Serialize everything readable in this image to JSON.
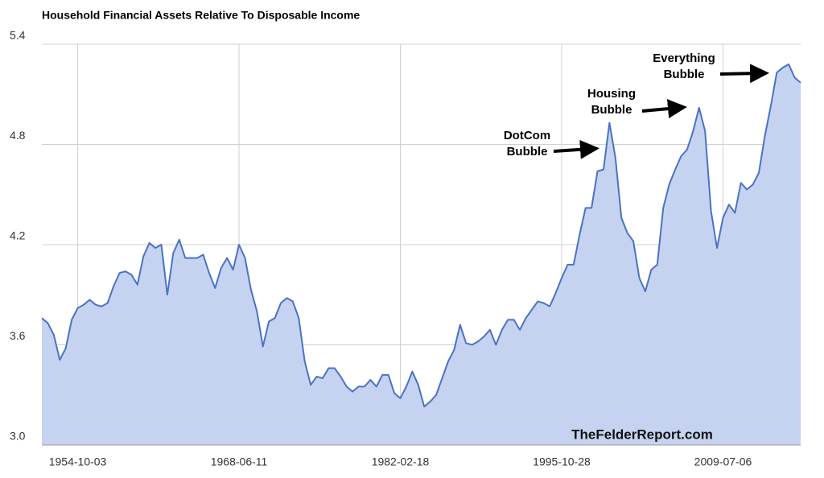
{
  "chart_data": {
    "type": "area",
    "title": "Household Financial Assets Relative To Disposable Income",
    "categories": [
      null,
      null,
      null,
      null,
      null,
      null,
      "1954-10-03",
      null,
      null,
      null,
      null,
      null,
      null,
      null,
      null,
      null,
      null,
      null,
      null,
      null,
      null,
      null,
      null,
      null,
      null,
      null,
      null,
      null,
      null,
      null,
      null,
      null,
      null,
      "1968-06-11",
      null,
      null,
      null,
      null,
      null,
      null,
      null,
      null,
      null,
      null,
      null,
      null,
      null,
      null,
      null,
      null,
      null,
      null,
      null,
      null,
      null,
      null,
      null,
      null,
      null,
      null,
      "1982-02-18",
      null,
      null,
      null,
      null,
      null,
      null,
      null,
      null,
      null,
      null,
      null,
      null,
      null,
      null,
      null,
      null,
      null,
      null,
      null,
      null,
      null,
      null,
      null,
      null,
      null,
      null,
      "1995-10-28",
      null,
      null,
      null,
      null,
      null,
      null,
      null,
      null,
      null,
      null,
      null,
      null,
      null,
      null,
      null,
      null,
      null,
      null,
      null,
      null,
      null,
      null,
      null,
      null,
      null,
      null,
      "2009-07-06",
      null,
      null,
      null,
      null,
      null,
      null,
      null,
      null,
      null,
      null,
      null,
      null,
      null
    ],
    "values": [
      3.76,
      3.73,
      3.66,
      3.51,
      3.58,
      3.75,
      3.82,
      3.84,
      3.87,
      3.84,
      3.83,
      3.85,
      3.95,
      4.03,
      4.04,
      4.02,
      3.96,
      4.13,
      4.21,
      4.18,
      4.2,
      3.9,
      4.15,
      4.23,
      4.12,
      4.12,
      4.12,
      4.14,
      4.03,
      3.94,
      4.06,
      4.12,
      4.05,
      4.2,
      4.12,
      3.93,
      3.8,
      3.59,
      3.74,
      3.76,
      3.85,
      3.88,
      3.86,
      3.76,
      3.5,
      3.36,
      3.41,
      3.4,
      3.46,
      3.46,
      3.41,
      3.35,
      3.32,
      3.35,
      3.35,
      3.39,
      3.35,
      3.42,
      3.42,
      3.31,
      3.28,
      3.35,
      3.44,
      3.36,
      3.23,
      3.26,
      3.3,
      3.4,
      3.5,
      3.57,
      3.72,
      3.61,
      3.6,
      3.62,
      3.65,
      3.69,
      3.6,
      3.69,
      3.75,
      3.75,
      3.69,
      3.76,
      3.81,
      3.86,
      3.85,
      3.83,
      3.91,
      4.0,
      4.08,
      4.08,
      4.26,
      4.42,
      4.42,
      4.64,
      4.65,
      4.93,
      4.72,
      4.36,
      4.27,
      4.22,
      4.0,
      3.92,
      4.05,
      4.08,
      4.42,
      4.56,
      4.65,
      4.73,
      4.77,
      4.88,
      5.02,
      4.88,
      4.4,
      4.18,
      4.36,
      4.44,
      4.39,
      4.57,
      4.53,
      4.56,
      4.63,
      4.85,
      5.03,
      5.23,
      5.26,
      5.28,
      5.2,
      5.17
    ],
    "color": "#4a72c4",
    "fill_color": "#c5d3f0",
    "ylim": [
      3,
      5.4
    ],
    "yticks": [
      {
        "value": 3,
        "label": "3.0"
      },
      3.6,
      4.2,
      4.8,
      5.4
    ],
    "grid": true,
    "annotations": [
      {
        "lines": [
          "DotCom",
          "Bubble"
        ]
      },
      {
        "lines": [
          "Housing",
          "Bubble"
        ]
      },
      {
        "lines": [
          "Everything",
          "Bubble"
        ]
      }
    ],
    "watermark": "TheFelderReport.com"
  }
}
